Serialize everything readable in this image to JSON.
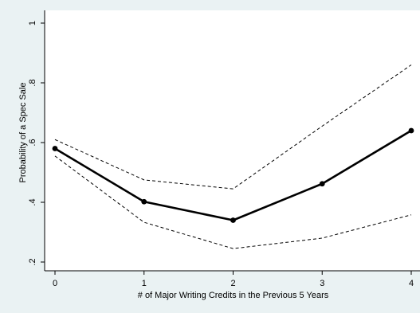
{
  "colors": {
    "background": "#eaf2f3",
    "plot_region": "#ffffff",
    "line": "#000000"
  },
  "chart_data": {
    "type": "line",
    "title": "",
    "xlabel": "# of Major Writing Credits in the Previous 5 Years",
    "ylabel": "Probability of a Spec Sale",
    "xlim": [
      0,
      4
    ],
    "ylim": [
      0.2,
      1.0
    ],
    "x_ticks": [
      0,
      1,
      2,
      3,
      4
    ],
    "x_tick_labels": [
      "0",
      "1",
      "2",
      "3",
      "4"
    ],
    "y_ticks": [
      0.2,
      0.4,
      0.6,
      0.8,
      1.0
    ],
    "y_tick_labels": [
      ".2",
      ".4",
      ".6",
      ".8",
      "1"
    ],
    "grid": false,
    "legend": "none",
    "x": [
      0,
      1,
      2,
      3,
      4
    ],
    "series": [
      {
        "role": "estimate",
        "style": "solid-markers",
        "values": [
          0.58,
          0.402,
          0.34,
          0.462,
          0.64
        ]
      },
      {
        "role": "upper bound",
        "style": "dashed",
        "values": [
          0.61,
          0.475,
          0.445,
          0.655,
          0.86
        ]
      },
      {
        "role": "lower bound",
        "style": "dashed",
        "values": [
          0.555,
          0.333,
          0.245,
          0.28,
          0.358
        ]
      }
    ]
  }
}
